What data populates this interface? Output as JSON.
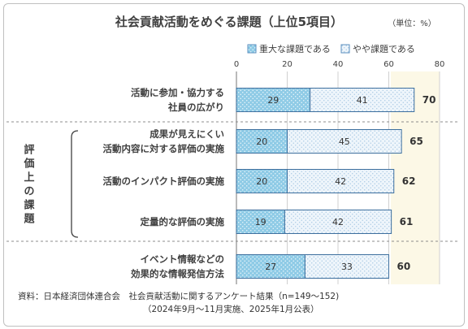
{
  "chart_data": {
    "type": "bar",
    "stacked": true,
    "orientation": "horizontal",
    "title": "社会貢献活動をめぐる課題（上位5項目）",
    "unit_note": "（単位：%）",
    "xlim": [
      0,
      80
    ],
    "x_ticks": [
      "0",
      "20",
      "40",
      "60",
      "80"
    ],
    "grid": true,
    "legend_position": "top",
    "categories": [
      [
        "活動に参加・協力する",
        "社員の広がり"
      ],
      [
        "成果が見えにくい",
        "活動内容に対する評価の実施"
      ],
      [
        "活動のインパクト評価の実施"
      ],
      [
        "定量的な評価の実施"
      ],
      [
        "イベント情報などの",
        "効果的な情報発信方法"
      ]
    ],
    "series": [
      {
        "name": "重大な課題である",
        "values": [
          29,
          20,
          20,
          19,
          27
        ],
        "color": "#8fcbe6"
      },
      {
        "name": "やや課題である",
        "values": [
          41,
          45,
          42,
          42,
          33
        ],
        "color": "#e8f1fa"
      }
    ],
    "totals": [
      70,
      65,
      62,
      61,
      60
    ],
    "group_label": "評価上の課題",
    "source_lines": [
      "資料：日本経済団体連合会　社会貢献活動に関するアンケート結果（n=149〜152)",
      "（2024年9月〜11月実施、2025年1月公表）"
    ]
  }
}
